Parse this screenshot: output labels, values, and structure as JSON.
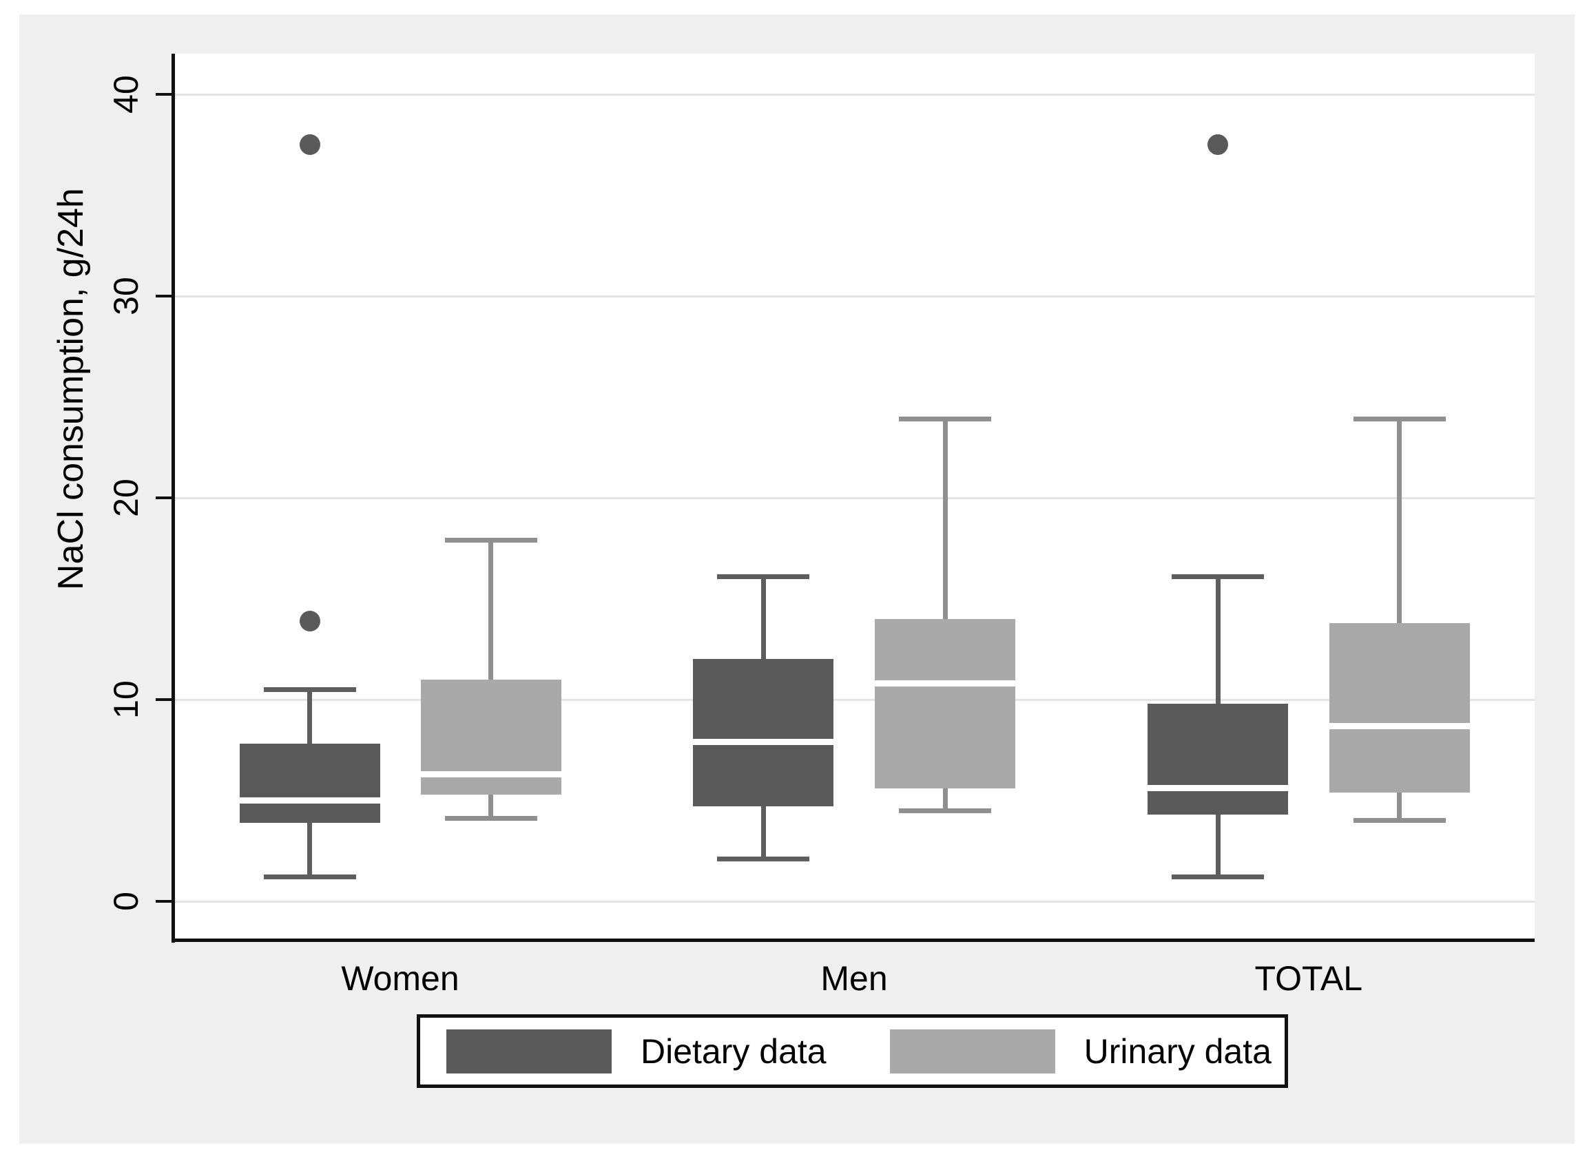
{
  "figure": {
    "page_background": "#ffffff",
    "panel_background": "#efefef",
    "plot_background": "#ffffff",
    "gridline_color": "#e4e4e4",
    "axis_color": "#111111"
  },
  "chart_data": {
    "type": "boxplot",
    "title": "",
    "xlabel": "",
    "ylabel": "NaCl consumption, g/24h",
    "ylim": [
      0,
      40
    ],
    "y_ticks": [
      0,
      10,
      20,
      30,
      40
    ],
    "grid": true,
    "legend_position": "bottom-center",
    "categories": [
      "Women",
      "Men",
      "TOTAL"
    ],
    "series": [
      {
        "name": "Dietary data",
        "fill_color": "#5a5a5a",
        "whisker_color": "#5e5e5e",
        "outlier_color": "#5a5a5a",
        "boxes": [
          {
            "category": "Women",
            "low": 1.2,
            "q1": 3.9,
            "median": 5.0,
            "q3": 7.8,
            "high": 10.5,
            "outliers": [
              13.9,
              37.5
            ]
          },
          {
            "category": "Men",
            "low": 2.1,
            "q1": 4.7,
            "median": 7.9,
            "q3": 12.0,
            "high": 16.1,
            "outliers": []
          },
          {
            "category": "TOTAL",
            "low": 1.2,
            "q1": 4.3,
            "median": 5.6,
            "q3": 9.8,
            "high": 16.1,
            "outliers": [
              37.5
            ]
          }
        ]
      },
      {
        "name": "Urinary data",
        "fill_color": "#a9a9a9",
        "whisker_color": "#8f8f8f",
        "outlier_color": "#a9a9a9",
        "boxes": [
          {
            "category": "Women",
            "low": 4.1,
            "q1": 5.3,
            "median": 6.3,
            "q3": 11.0,
            "high": 17.9,
            "outliers": []
          },
          {
            "category": "Men",
            "low": 4.5,
            "q1": 5.6,
            "median": 10.8,
            "q3": 14.0,
            "high": 23.9,
            "outliers": []
          },
          {
            "category": "TOTAL",
            "low": 4.0,
            "q1": 5.4,
            "median": 8.7,
            "q3": 13.8,
            "high": 23.9,
            "outliers": []
          }
        ]
      }
    ]
  }
}
